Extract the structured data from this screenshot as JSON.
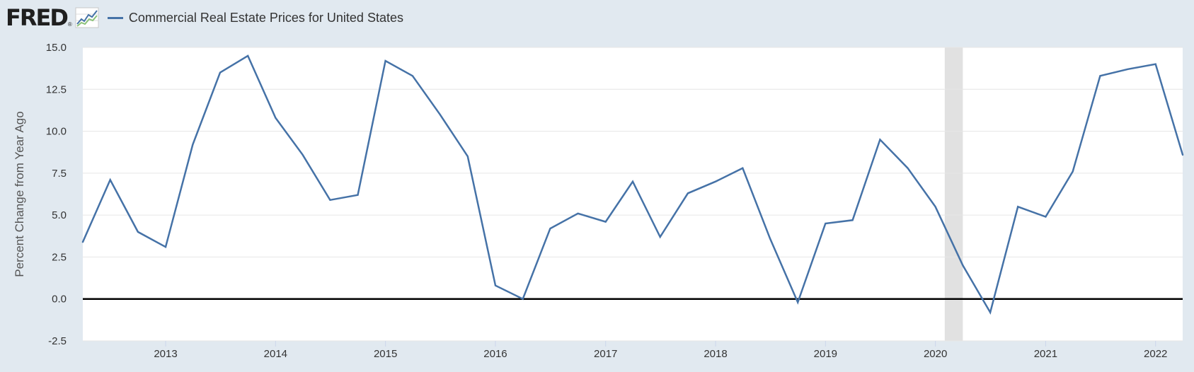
{
  "header": {
    "logo_text": "FRED",
    "logo_reg": "®",
    "logo_icon": "fred-sparkline-icon"
  },
  "colors": {
    "background": "#e1e9f0",
    "plot_background": "#ffffff",
    "series": "#4572a7",
    "recession": "#e1e1e1",
    "zero_line": "#000000",
    "grid": "#e6e6e6",
    "tick_text": "#333333"
  },
  "chart_data": {
    "type": "line",
    "title": "",
    "xlabel": "",
    "ylabel": "Percent Change from Year Ago",
    "ylim": [
      -2.5,
      15.0
    ],
    "xlim": [
      "2012-04-01",
      "2022-04-01"
    ],
    "yticks": [
      "-2.5",
      "0.0",
      "2.5",
      "5.0",
      "7.5",
      "10.0",
      "12.5",
      "15.0"
    ],
    "xticks": [
      "2013",
      "2014",
      "2015",
      "2016",
      "2017",
      "2018",
      "2019",
      "2020",
      "2021",
      "2022"
    ],
    "grid": true,
    "legend_position": "top-left",
    "recession_shading": [
      {
        "start": "2020-02-01",
        "end": "2020-04-01"
      }
    ],
    "reference_line": 0.0,
    "series": [
      {
        "name": "Commercial Real Estate Prices for United States",
        "x": [
          "2012-04-01",
          "2012-07-01",
          "2012-10-01",
          "2013-01-01",
          "2013-04-01",
          "2013-07-01",
          "2013-10-01",
          "2014-01-01",
          "2014-04-01",
          "2014-07-01",
          "2014-10-01",
          "2015-01-01",
          "2015-04-01",
          "2015-07-01",
          "2015-10-01",
          "2016-01-01",
          "2016-04-01",
          "2016-07-01",
          "2016-10-01",
          "2017-01-01",
          "2017-04-01",
          "2017-07-01",
          "2017-10-01",
          "2018-01-01",
          "2018-04-01",
          "2018-07-01",
          "2018-10-01",
          "2019-01-01",
          "2019-04-01",
          "2019-07-01",
          "2019-10-01",
          "2020-01-01",
          "2020-04-01",
          "2020-07-01",
          "2020-10-01",
          "2021-01-01",
          "2021-04-01",
          "2021-07-01",
          "2021-10-01",
          "2022-01-01",
          "2022-04-01"
        ],
        "values": [
          3.4,
          7.1,
          4.0,
          3.1,
          9.2,
          13.5,
          14.5,
          10.8,
          8.6,
          5.9,
          6.2,
          14.2,
          13.3,
          11.0,
          8.5,
          0.8,
          0.0,
          4.2,
          5.1,
          4.6,
          7.0,
          3.7,
          6.3,
          7.0,
          7.8,
          3.6,
          -0.2,
          4.5,
          4.7,
          9.5,
          7.8,
          5.5,
          2.0,
          -0.8,
          5.5,
          4.9,
          7.6,
          13.3,
          13.7,
          14.0,
          8.6
        ]
      }
    ]
  }
}
